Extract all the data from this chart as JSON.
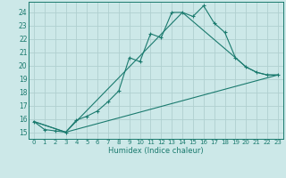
{
  "title": "",
  "xlabel": "Humidex (Indice chaleur)",
  "ylabel": "",
  "background_color": "#cce8e8",
  "grid_color": "#b0d0d0",
  "line_color": "#1a7a6e",
  "xlim": [
    -0.5,
    23.5
  ],
  "ylim": [
    14.5,
    24.8
  ],
  "xticks": [
    0,
    1,
    2,
    3,
    4,
    5,
    6,
    7,
    8,
    9,
    10,
    11,
    12,
    13,
    14,
    15,
    16,
    17,
    18,
    19,
    20,
    21,
    22,
    23
  ],
  "yticks": [
    15,
    16,
    17,
    18,
    19,
    20,
    21,
    22,
    23,
    24
  ],
  "line1_x": [
    0,
    1,
    2,
    3,
    4,
    5,
    6,
    7,
    8,
    9,
    10,
    11,
    12,
    13,
    14,
    15,
    16,
    17,
    18,
    19,
    20,
    21,
    22,
    23
  ],
  "line1_y": [
    15.8,
    15.2,
    15.1,
    15.0,
    15.9,
    16.2,
    16.6,
    17.3,
    18.1,
    20.6,
    20.3,
    22.4,
    22.1,
    24.0,
    24.0,
    23.7,
    24.5,
    23.2,
    22.5,
    20.6,
    19.9,
    19.5,
    19.3,
    19.3
  ],
  "line2_x": [
    0,
    3,
    14,
    19,
    20,
    21,
    22,
    23
  ],
  "line2_y": [
    15.8,
    15.0,
    24.0,
    20.6,
    19.9,
    19.5,
    19.3,
    19.3
  ],
  "line3_x": [
    0,
    3,
    23
  ],
  "line3_y": [
    15.8,
    15.0,
    19.3
  ]
}
